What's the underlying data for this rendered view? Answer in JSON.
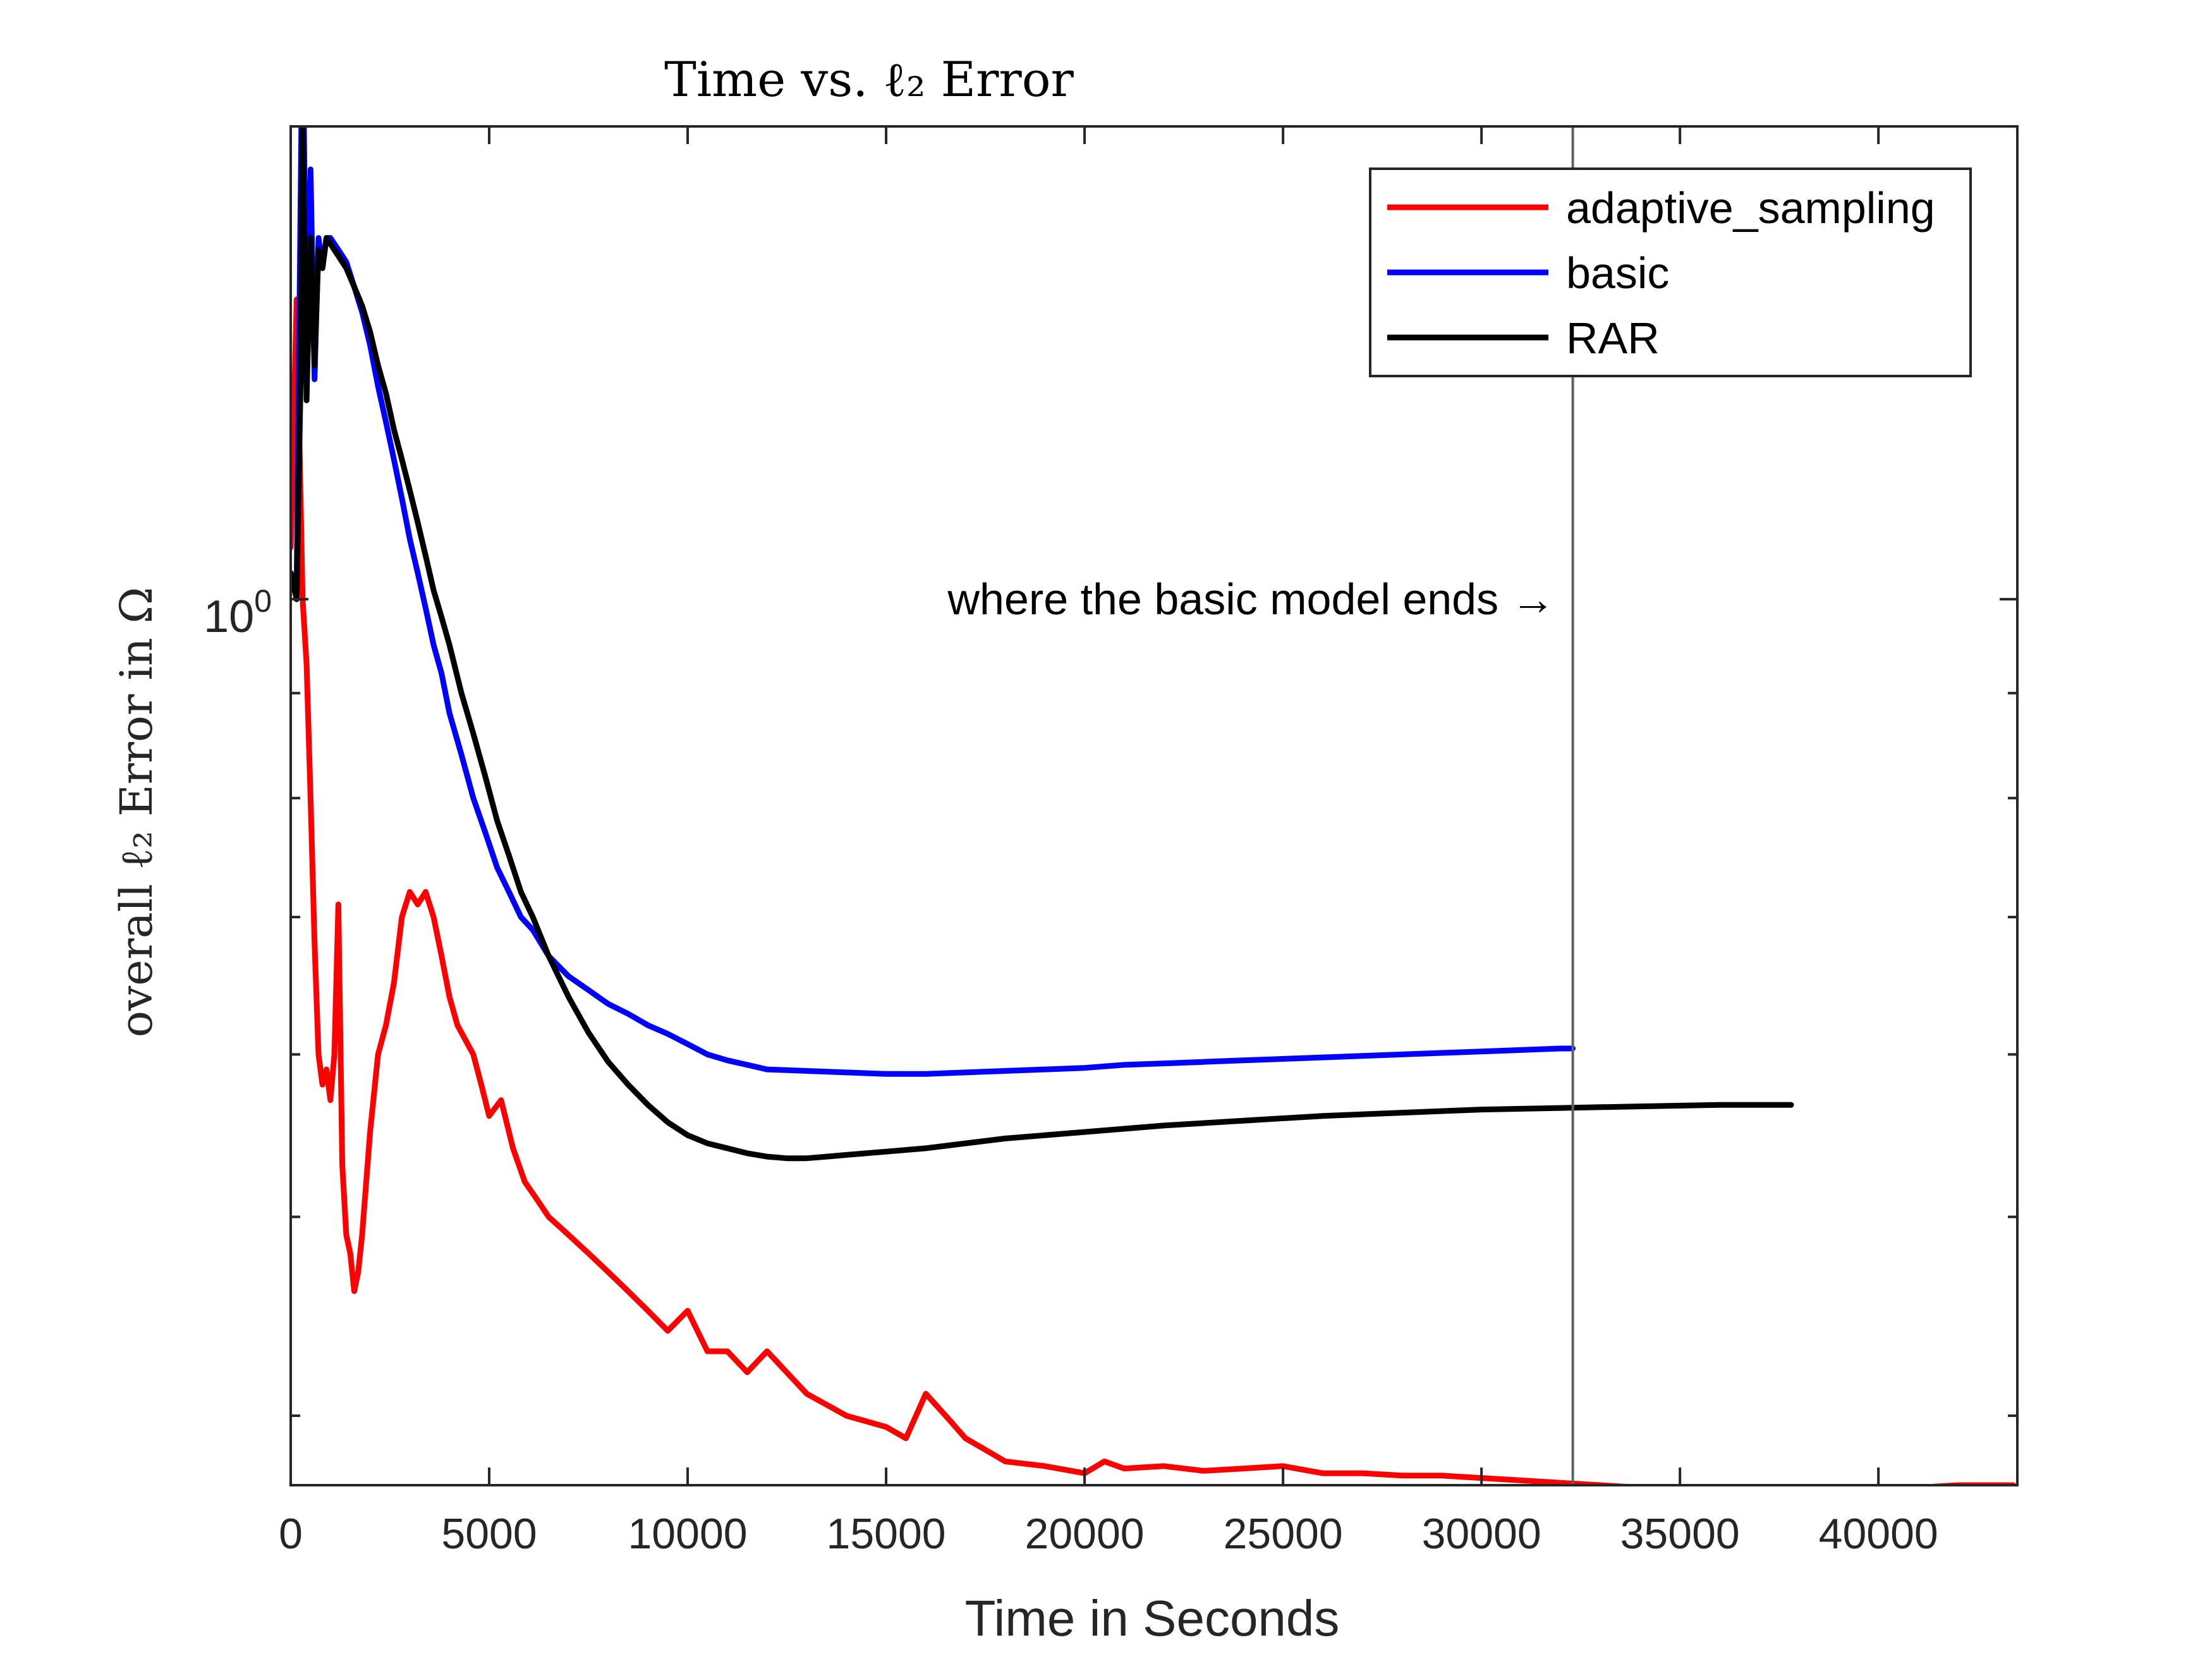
{
  "chart_data": {
    "type": "line",
    "title": "Time vs. ℓ₂ Error",
    "xlabel": "Time in Seconds",
    "ylabel": "overall ℓ₂ Error in Ω",
    "xlim": [
      0,
      43500
    ],
    "ylim": [
      0.37,
      1.7
    ],
    "y_scale": "log",
    "grid": false,
    "legend_position": "top-right",
    "x_ticks": [
      {
        "value": 0,
        "label": "0"
      },
      {
        "value": 5000,
        "label": "5000"
      },
      {
        "value": 10000,
        "label": "10000"
      },
      {
        "value": 15000,
        "label": "15000"
      },
      {
        "value": 20000,
        "label": "20000"
      },
      {
        "value": 25000,
        "label": "25000"
      },
      {
        "value": 30000,
        "label": "30000"
      },
      {
        "value": 35000,
        "label": "35000"
      },
      {
        "value": 40000,
        "label": "40000"
      }
    ],
    "y_ticks": [
      {
        "value": 1,
        "label_base": "10",
        "label_exp": "0"
      }
    ],
    "y_minor_ticks": [
      0.4,
      0.5,
      0.6,
      0.7,
      0.8,
      0.9,
      2
    ],
    "vertical_line": {
      "x": 32300
    },
    "annotation": {
      "text": "where the basic model ends →",
      "x": 32300,
      "y": 1.0
    },
    "series": [
      {
        "name": "adaptive_sampling",
        "color": "#ff0000",
        "x": [
          0,
          150,
          300,
          400,
          500,
          600,
          700,
          800,
          900,
          1000,
          1100,
          1200,
          1300,
          1400,
          1500,
          1600,
          1700,
          1800,
          2000,
          2200,
          2400,
          2600,
          2800,
          3000,
          3200,
          3400,
          3600,
          3800,
          4000,
          4200,
          4400,
          4600,
          4800,
          5000,
          5300,
          5600,
          5900,
          6200,
          6500,
          7000,
          7500,
          8000,
          8500,
          9000,
          9500,
          10000,
          10500,
          11000,
          11500,
          12000,
          13000,
          14000,
          15000,
          15500,
          16000,
          16500,
          17000,
          17500,
          18000,
          19000,
          20000,
          20500,
          21000,
          22000,
          23000,
          24000,
          25000,
          26000,
          27000,
          28000,
          29000,
          30000,
          31000,
          32000,
          33000,
          34000,
          35000,
          36000,
          37000,
          38000,
          39000,
          40000,
          41000,
          42000,
          43400
        ],
        "values": [
          1.06,
          1.4,
          1.0,
          0.93,
          0.8,
          0.68,
          0.6,
          0.58,
          0.59,
          0.57,
          0.6,
          0.71,
          0.53,
          0.49,
          0.48,
          0.46,
          0.47,
          0.49,
          0.55,
          0.6,
          0.62,
          0.65,
          0.7,
          0.72,
          0.71,
          0.72,
          0.7,
          0.67,
          0.64,
          0.62,
          0.61,
          0.6,
          0.58,
          0.56,
          0.57,
          0.54,
          0.52,
          0.51,
          0.5,
          0.49,
          0.48,
          0.47,
          0.46,
          0.45,
          0.44,
          0.45,
          0.43,
          0.43,
          0.42,
          0.43,
          0.41,
          0.4,
          0.395,
          0.39,
          0.41,
          0.4,
          0.39,
          0.385,
          0.38,
          0.378,
          0.375,
          0.38,
          0.377,
          0.378,
          0.376,
          0.377,
          0.378,
          0.375,
          0.375,
          0.374,
          0.374,
          0.373,
          0.372,
          0.371,
          0.37,
          0.369,
          0.369,
          0.368,
          0.368,
          0.368,
          0.368,
          0.369,
          0.369,
          0.37,
          0.37
        ]
      },
      {
        "name": "basic",
        "color": "#0000ff",
        "x": [
          0,
          150,
          300,
          400,
          500,
          600,
          700,
          800,
          900,
          1000,
          1200,
          1400,
          1600,
          1800,
          2000,
          2200,
          2400,
          2600,
          2800,
          3000,
          3200,
          3400,
          3600,
          3800,
          4000,
          4300,
          4600,
          4900,
          5200,
          5500,
          5800,
          6100,
          6500,
          7000,
          7500,
          8000,
          8500,
          9000,
          9500,
          10000,
          10500,
          11000,
          11500,
          12000,
          13000,
          14000,
          15000,
          16000,
          17000,
          18000,
          19000,
          20000,
          21000,
          22000,
          23000,
          24000,
          25000,
          26000,
          27000,
          28000,
          29000,
          30000,
          31000,
          32000,
          32300
        ],
        "values": [
          1.03,
          1.02,
          1.95,
          1.3,
          1.62,
          1.28,
          1.5,
          1.45,
          1.5,
          1.5,
          1.48,
          1.46,
          1.42,
          1.38,
          1.33,
          1.27,
          1.22,
          1.17,
          1.12,
          1.07,
          1.03,
          0.99,
          0.95,
          0.92,
          0.88,
          0.84,
          0.8,
          0.77,
          0.74,
          0.72,
          0.7,
          0.69,
          0.67,
          0.655,
          0.645,
          0.635,
          0.628,
          0.62,
          0.614,
          0.607,
          0.6,
          0.596,
          0.593,
          0.59,
          0.589,
          0.588,
          0.587,
          0.587,
          0.588,
          0.589,
          0.59,
          0.591,
          0.593,
          0.594,
          0.595,
          0.596,
          0.597,
          0.598,
          0.599,
          0.6,
          0.601,
          0.602,
          0.603,
          0.604,
          0.604
        ]
      },
      {
        "name": "RAR",
        "color": "#000000",
        "x": [
          0,
          150,
          250,
          300,
          400,
          500,
          600,
          700,
          800,
          900,
          1000,
          1200,
          1400,
          1600,
          1800,
          2000,
          2200,
          2400,
          2600,
          2800,
          3000,
          3200,
          3400,
          3600,
          3800,
          4000,
          4300,
          4600,
          4900,
          5200,
          5500,
          5800,
          6100,
          6500,
          7000,
          7500,
          8000,
          8500,
          9000,
          9500,
          10000,
          10500,
          11000,
          11500,
          12000,
          12500,
          13000,
          13500,
          14000,
          15000,
          16000,
          17000,
          18000,
          20000,
          22000,
          24000,
          26000,
          28000,
          30000,
          32000,
          34000,
          36000,
          37800
        ],
        "values": [
          1.03,
          1.0,
          1.28,
          1.7,
          1.25,
          1.5,
          1.3,
          1.48,
          1.45,
          1.5,
          1.49,
          1.47,
          1.45,
          1.42,
          1.39,
          1.35,
          1.3,
          1.26,
          1.21,
          1.17,
          1.13,
          1.09,
          1.05,
          1.01,
          0.98,
          0.95,
          0.9,
          0.86,
          0.82,
          0.78,
          0.75,
          0.72,
          0.7,
          0.67,
          0.64,
          0.615,
          0.595,
          0.58,
          0.567,
          0.556,
          0.548,
          0.543,
          0.54,
          0.537,
          0.535,
          0.534,
          0.534,
          0.535,
          0.536,
          0.538,
          0.54,
          0.543,
          0.546,
          0.55,
          0.554,
          0.557,
          0.56,
          0.562,
          0.564,
          0.565,
          0.566,
          0.567,
          0.567
        ]
      }
    ]
  }
}
